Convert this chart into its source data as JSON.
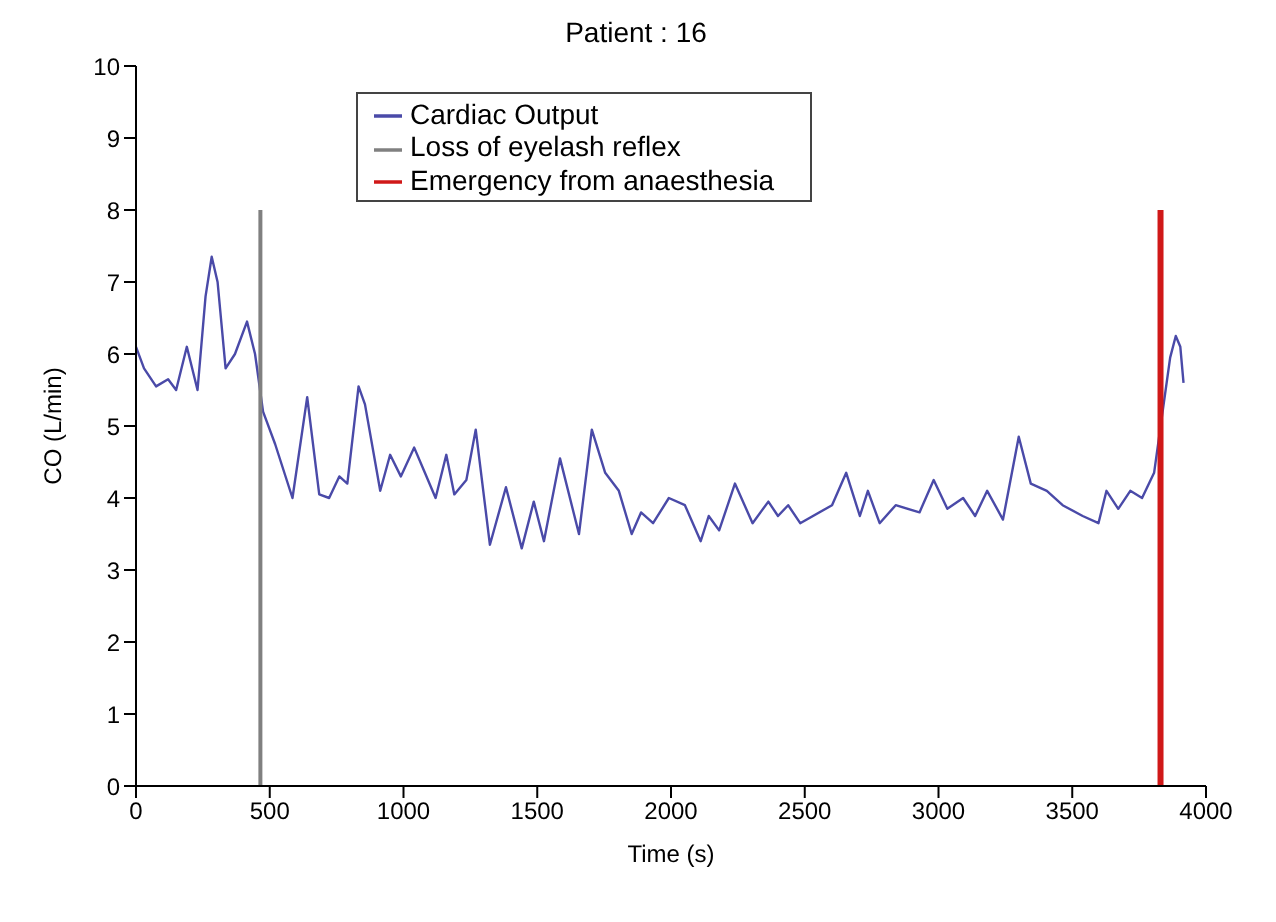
{
  "chart_data": {
    "type": "line",
    "title": "Patient : 16",
    "xlabel": "Time (s)",
    "ylabel": "CO (L/min)",
    "xlim": [
      0,
      4000
    ],
    "xticks": [
      0,
      500,
      1000,
      1500,
      2000,
      2500,
      3000,
      3500,
      4000
    ],
    "ylim": [
      0,
      10
    ],
    "yticks": [
      0,
      1,
      2,
      3,
      4,
      5,
      6,
      7,
      8,
      9,
      10
    ],
    "legend": "top",
    "marker": "none",
    "line_style": "solid",
    "series": [
      {
        "name": "Cardiac Output",
        "color": "#4a4aa8",
        "x": [
          0,
          30,
          75,
          120,
          150,
          190,
          230,
          260,
          283,
          305,
          335,
          370,
          415,
          445,
          475,
          520,
          585,
          640,
          685,
          722,
          760,
          790,
          832,
          856,
          913,
          950,
          990,
          1040,
          1080,
          1120,
          1160,
          1190,
          1235,
          1270,
          1323,
          1383,
          1442,
          1487,
          1525,
          1585,
          1656,
          1704,
          1754,
          1805,
          1853,
          1888,
          1933,
          1992,
          2052,
          2111,
          2141,
          2180,
          2239,
          2305,
          2364,
          2400,
          2438,
          2483,
          2602,
          2655,
          2706,
          2736,
          2780,
          2840,
          2929,
          2982,
          3033,
          3092,
          3137,
          3182,
          3241,
          3300,
          3345,
          3405,
          3464,
          3539,
          3598,
          3628,
          3672,
          3717,
          3761,
          3806,
          3836,
          3866,
          3887,
          3904,
          3916
        ],
        "values": [
          6.1,
          5.8,
          5.55,
          5.65,
          5.5,
          6.1,
          5.5,
          6.8,
          7.35,
          7.0,
          5.8,
          6.0,
          6.45,
          6.0,
          5.2,
          4.75,
          4.0,
          5.4,
          4.05,
          4.0,
          4.3,
          4.2,
          5.55,
          5.3,
          4.1,
          4.6,
          4.3,
          4.7,
          4.35,
          4.0,
          4.6,
          4.05,
          4.25,
          4.95,
          3.35,
          4.15,
          3.3,
          3.95,
          3.4,
          4.55,
          3.5,
          4.95,
          4.35,
          4.1,
          3.5,
          3.8,
          3.65,
          4.0,
          3.9,
          3.4,
          3.75,
          3.55,
          4.2,
          3.65,
          3.95,
          3.75,
          3.9,
          3.65,
          3.9,
          4.35,
          3.75,
          4.1,
          3.65,
          3.9,
          3.8,
          4.25,
          3.85,
          4.0,
          3.75,
          4.1,
          3.7,
          4.85,
          4.2,
          4.1,
          3.9,
          3.75,
          3.65,
          4.1,
          3.85,
          4.1,
          4.0,
          4.35,
          5.15,
          5.95,
          6.25,
          6.1,
          5.6
        ]
      },
      {
        "name": "Loss of eyelash reflex",
        "color": "#808080",
        "x": [
          465,
          465
        ],
        "values": [
          0,
          8
        ]
      },
      {
        "name": "Emergency from anaesthesia",
        "color": "#d01818",
        "x": [
          3830,
          3830
        ],
        "values": [
          0,
          8
        ]
      }
    ]
  }
}
